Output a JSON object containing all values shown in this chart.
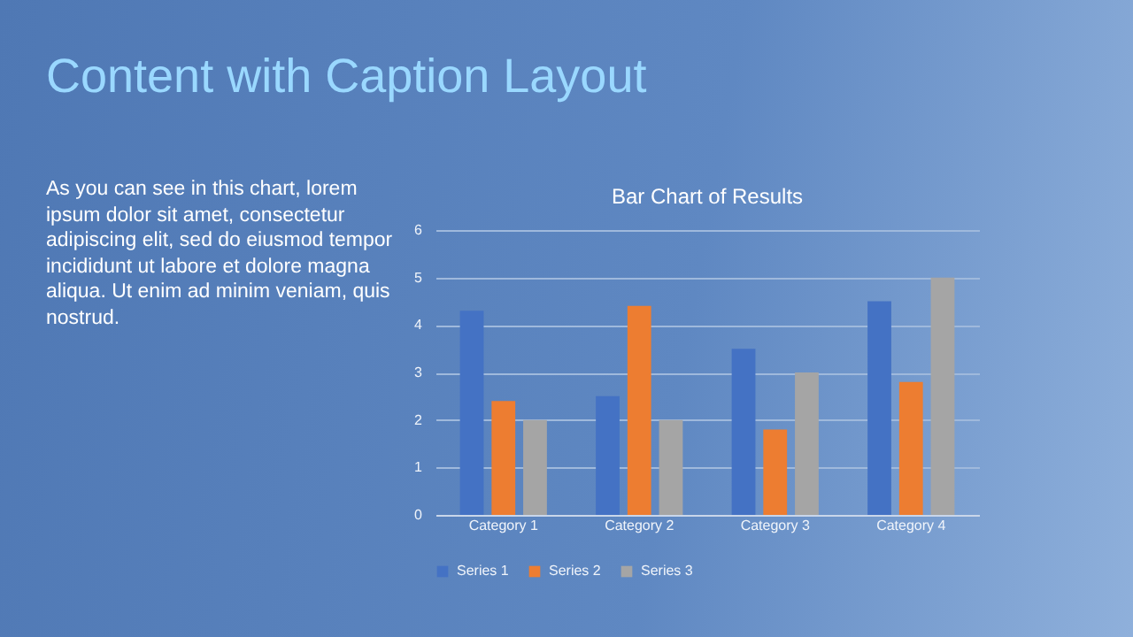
{
  "chart_data": {
    "type": "bar",
    "title": "Bar Chart of Results",
    "annotations": [
      "Content with Caption Layout",
      "As you can see in this chart, lorem ipsum dolor sit amet, consectetur adipiscing elit, sed do eiusmod tempor incididunt ut labore et dolore magna aliqua. Ut enim ad minim veniam, quis nostrud."
    ],
    "categories": [
      "Category 1",
      "Category 2",
      "Category 3",
      "Category 4"
    ],
    "series": [
      {
        "name": "Series 1",
        "color": "#4472c4",
        "values": [
          4.3,
          2.5,
          3.5,
          4.5
        ]
      },
      {
        "name": "Series 2",
        "color": "#ed7d31",
        "values": [
          2.4,
          4.4,
          1.8,
          2.8
        ]
      },
      {
        "name": "Series 3",
        "color": "#a5a5a5",
        "values": [
          2,
          2,
          3,
          5
        ]
      }
    ],
    "ylim": [
      0,
      6
    ],
    "yticks": [
      0,
      1,
      2,
      3,
      4,
      5,
      6
    ],
    "grid": "y",
    "legend": "bottom"
  }
}
